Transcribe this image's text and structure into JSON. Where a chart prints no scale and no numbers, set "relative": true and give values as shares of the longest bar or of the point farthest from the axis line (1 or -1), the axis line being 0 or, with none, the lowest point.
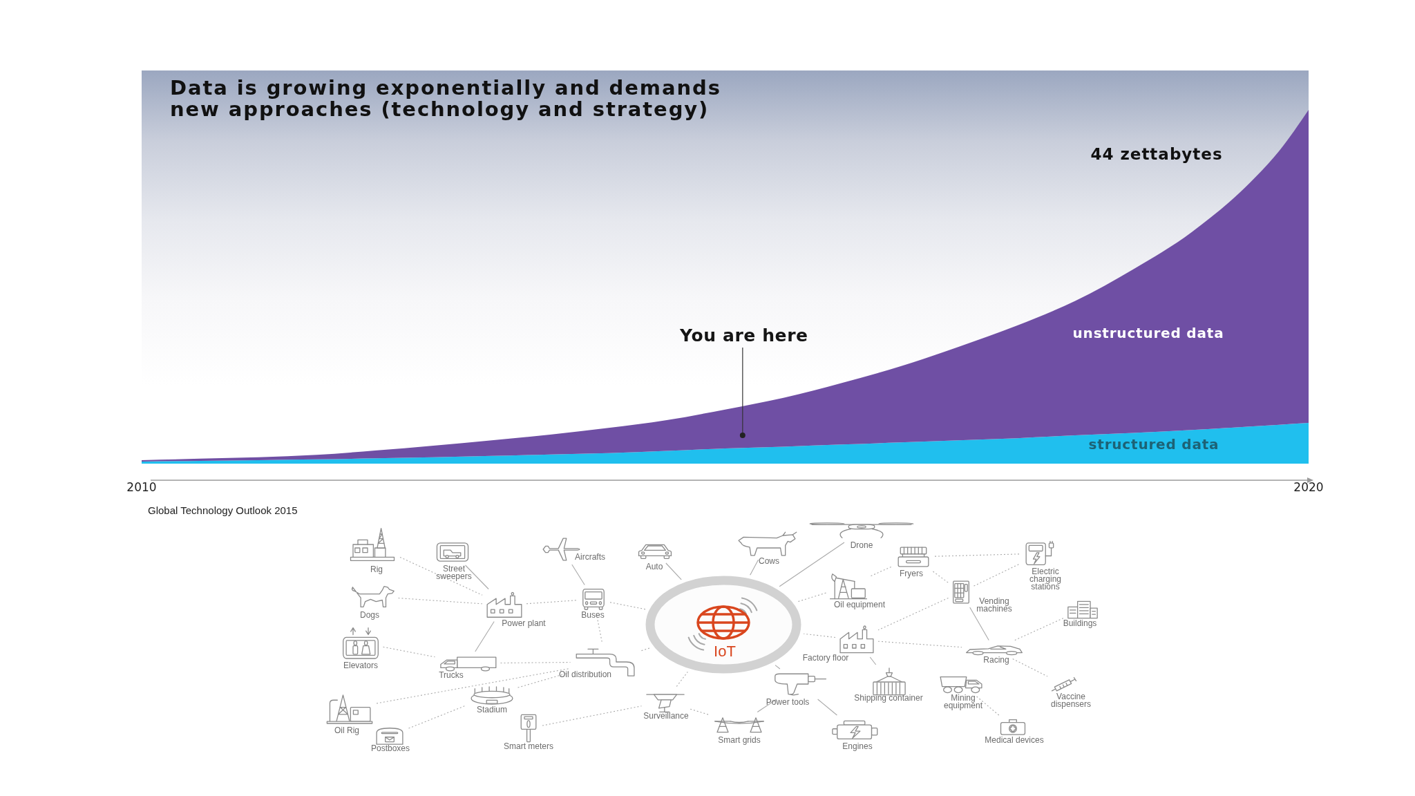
{
  "chart_data": [
    {
      "type": "area",
      "title": "Data is growing exponentially and demands new approaches (technology and strategy)",
      "x": [
        2010,
        2010.5,
        2011,
        2011.5,
        2012,
        2012.5,
        2013,
        2013.5,
        2014,
        2014.5,
        2015,
        2015.5,
        2016,
        2016.5,
        2017,
        2017.5,
        2018,
        2018.5,
        2019,
        2019.5,
        2019.75,
        2020
      ],
      "series": [
        {
          "name": "structured data",
          "color": "#20bfee",
          "values": [
            0.006,
            0.008,
            0.01,
            0.012,
            0.015,
            0.018,
            0.022,
            0.026,
            0.03,
            0.036,
            0.043,
            0.048,
            0.054,
            0.06,
            0.066,
            0.072,
            0.08,
            0.087,
            0.095,
            0.105,
            0.11,
            0.115
          ]
        },
        {
          "name": "unstructured data",
          "color": "#6f4fa4",
          "values": [
            0.004,
            0.006,
            0.008,
            0.013,
            0.022,
            0.033,
            0.044,
            0.056,
            0.071,
            0.087,
            0.11,
            0.138,
            0.174,
            0.215,
            0.264,
            0.318,
            0.38,
            0.463,
            0.56,
            0.69,
            0.775,
            0.885
          ]
        }
      ],
      "stacked": true,
      "relative": true,
      "xlim": [
        2010,
        2020
      ],
      "xticks": [
        2010,
        2020
      ],
      "annotations": [
        "44 zettabytes",
        {
          "text": "You are here",
          "x": 2015.15,
          "y": 0.08
        },
        "Global Technology Outlook 2015"
      ]
    },
    {
      "type": "other",
      "annotations": [
        "Rig",
        "Street sweepers",
        "Aircrafts",
        "Auto",
        "Cows",
        "Drone",
        "Fryers",
        "Electric charging stations",
        "Dogs",
        "Power plant",
        "Buses",
        "Oil equipment",
        "Vending machines",
        "Buildings",
        "IoT",
        "Elevators",
        "Trucks",
        "Oil distribution",
        "Factory floor",
        "Racing",
        "Power tools",
        "Shipping container",
        "Mining equipment",
        "Vaccine dispensers",
        "Oil Rig",
        "Stadium",
        "Surveillance",
        "Smart grids",
        "Engines",
        "Medical devices",
        "Postboxes",
        "Smart meters"
      ]
    }
  ]
}
